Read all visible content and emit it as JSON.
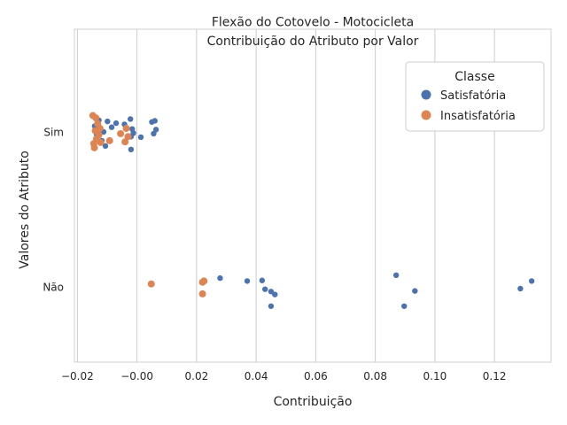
{
  "chart_data": {
    "type": "scatter",
    "title": "Flexão do Cotovelo - Motocicleta",
    "subtitle": "Contribuição do Atributo por Valor",
    "xlabel": "Contribuição",
    "ylabel": "Valores do Atributo",
    "xlim": [
      -0.021,
      0.139
    ],
    "xticks": [
      -0.02,
      0.0,
      0.02,
      0.04,
      0.06,
      0.08,
      0.1,
      0.12
    ],
    "xtick_labels": [
      "−0.02",
      "−0.00",
      "0.02",
      "0.04",
      "0.06",
      "0.08",
      "0.10",
      "0.12"
    ],
    "categories": [
      "Sim",
      "Não"
    ],
    "grid": "vertical",
    "legend": {
      "title": "Classe",
      "placement": "top-right"
    },
    "series": [
      {
        "name": "Satisfatória",
        "color": "#4c72b0",
        "points": [
          {
            "x": -0.0142,
            "y": "Sim",
            "j": 0.1
          },
          {
            "x": -0.0135,
            "y": "Sim",
            "j": -0.05
          },
          {
            "x": -0.0128,
            "y": "Sim",
            "j": 0.2
          },
          {
            "x": -0.0118,
            "y": "Sim",
            "j": -0.15
          },
          {
            "x": -0.0112,
            "y": "Sim",
            "j": 0.0
          },
          {
            "x": -0.0106,
            "y": "Sim",
            "j": -0.24
          },
          {
            "x": -0.0099,
            "y": "Sim",
            "j": 0.18
          },
          {
            "x": -0.0085,
            "y": "Sim",
            "j": 0.08
          },
          {
            "x": -0.007,
            "y": "Sim",
            "j": 0.15
          },
          {
            "x": -0.0042,
            "y": "Sim",
            "j": 0.13
          },
          {
            "x": -0.0022,
            "y": "Sim",
            "j": 0.22
          },
          {
            "x": -0.002,
            "y": "Sim",
            "j": -0.08
          },
          {
            "x": -0.002,
            "y": "Sim",
            "j": -0.3
          },
          {
            "x": -0.0016,
            "y": "Sim",
            "j": 0.05
          },
          {
            "x": -0.0012,
            "y": "Sim",
            "j": -0.02
          },
          {
            "x": 0.0013,
            "y": "Sim",
            "j": -0.09
          },
          {
            "x": 0.005,
            "y": "Sim",
            "j": 0.17
          },
          {
            "x": 0.0056,
            "y": "Sim",
            "j": -0.03
          },
          {
            "x": 0.006,
            "y": "Sim",
            "j": 0.19
          },
          {
            "x": 0.0064,
            "y": "Sim",
            "j": 0.04
          },
          {
            "x": 0.0279,
            "y": "Não",
            "j": 0.15
          },
          {
            "x": 0.037,
            "y": "Não",
            "j": 0.1
          },
          {
            "x": 0.042,
            "y": "Não",
            "j": 0.11
          },
          {
            "x": 0.043,
            "y": "Não",
            "j": -0.04
          },
          {
            "x": 0.045,
            "y": "Não",
            "j": -0.08
          },
          {
            "x": 0.0463,
            "y": "Não",
            "j": -0.13
          },
          {
            "x": 0.045,
            "y": "Não",
            "j": -0.33
          },
          {
            "x": 0.087,
            "y": "Não",
            "j": 0.2
          },
          {
            "x": 0.0897,
            "y": "Não",
            "j": -0.33
          },
          {
            "x": 0.0933,
            "y": "Não",
            "j": -0.07
          },
          {
            "x": 0.1287,
            "y": "Não",
            "j": -0.03
          },
          {
            "x": 0.1325,
            "y": "Não",
            "j": 0.1
          }
        ]
      },
      {
        "name": "Insatisfatória",
        "color": "#dd8452",
        "points": [
          {
            "x": -0.0148,
            "y": "Sim",
            "j": 0.28
          },
          {
            "x": -0.0145,
            "y": "Sim",
            "j": -0.2
          },
          {
            "x": -0.0143,
            "y": "Sim",
            "j": -0.27
          },
          {
            "x": -0.014,
            "y": "Sim",
            "j": 0.02
          },
          {
            "x": -0.0138,
            "y": "Sim",
            "j": 0.24
          },
          {
            "x": -0.0136,
            "y": "Sim",
            "j": -0.12
          },
          {
            "x": -0.0132,
            "y": "Sim",
            "j": 0.14
          },
          {
            "x": -0.0128,
            "y": "Sim",
            "j": -0.05
          },
          {
            "x": -0.0124,
            "y": "Sim",
            "j": 0.06
          },
          {
            "x": -0.0122,
            "y": "Sim",
            "j": -0.18
          },
          {
            "x": -0.0092,
            "y": "Sim",
            "j": -0.15
          },
          {
            "x": -0.0055,
            "y": "Sim",
            "j": -0.03
          },
          {
            "x": -0.004,
            "y": "Sim",
            "j": -0.17
          },
          {
            "x": -0.0036,
            "y": "Sim",
            "j": 0.06
          },
          {
            "x": -0.003,
            "y": "Sim",
            "j": -0.08
          },
          {
            "x": 0.0048,
            "y": "Não",
            "j": 0.05
          },
          {
            "x": 0.022,
            "y": "Não",
            "j": 0.08
          },
          {
            "x": 0.0225,
            "y": "Não",
            "j": 0.1
          },
          {
            "x": 0.022,
            "y": "Não",
            "j": -0.12
          }
        ]
      }
    ]
  }
}
